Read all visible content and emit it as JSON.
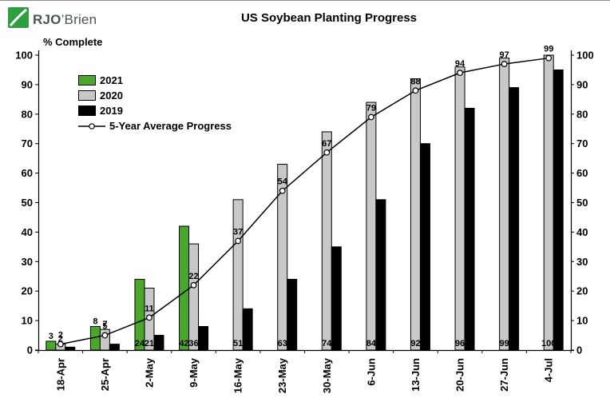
{
  "logo": {
    "brand_bold": "RJO",
    "brand_light": "’Brien",
    "accent_color": "#2e9e3e"
  },
  "chart_data": {
    "type": "bar",
    "title": "US Soybean Planting Progress",
    "ylabel": "% Complete",
    "ylim": [
      0,
      100
    ],
    "ytick_step": 10,
    "grid": false,
    "legend_position": "upper-left-inside",
    "categories": [
      "18-Apr",
      "25-Apr",
      "2-May",
      "9-May",
      "16-May",
      "23-May",
      "30-May",
      "6-Jun",
      "13-Jun",
      "20-Jun",
      "27-Jun",
      "4-Jul"
    ],
    "series": [
      {
        "name": "2021",
        "type": "bar",
        "color": "#4ba72c",
        "values": [
          3,
          8,
          24,
          42,
          null,
          null,
          null,
          null,
          null,
          null,
          null,
          null
        ],
        "labels_shown": true
      },
      {
        "name": "2020",
        "type": "bar",
        "color": "#c8c8c8",
        "values": [
          2,
          7,
          21,
          36,
          51,
          63,
          74,
          84,
          92,
          96,
          99,
          100
        ],
        "labels_shown": true
      },
      {
        "name": "2019",
        "type": "bar",
        "color": "#000000",
        "values": [
          1,
          2,
          5,
          8,
          14,
          24,
          35,
          51,
          70,
          82,
          89,
          95
        ],
        "labels_shown": false
      },
      {
        "name": "5-Year Average Progress",
        "type": "line",
        "color": "#000000",
        "marker": "circle-white",
        "values": [
          2,
          5,
          11,
          22,
          37,
          54,
          67,
          79,
          88,
          94,
          97,
          99
        ],
        "labels_shown": true
      }
    ]
  }
}
